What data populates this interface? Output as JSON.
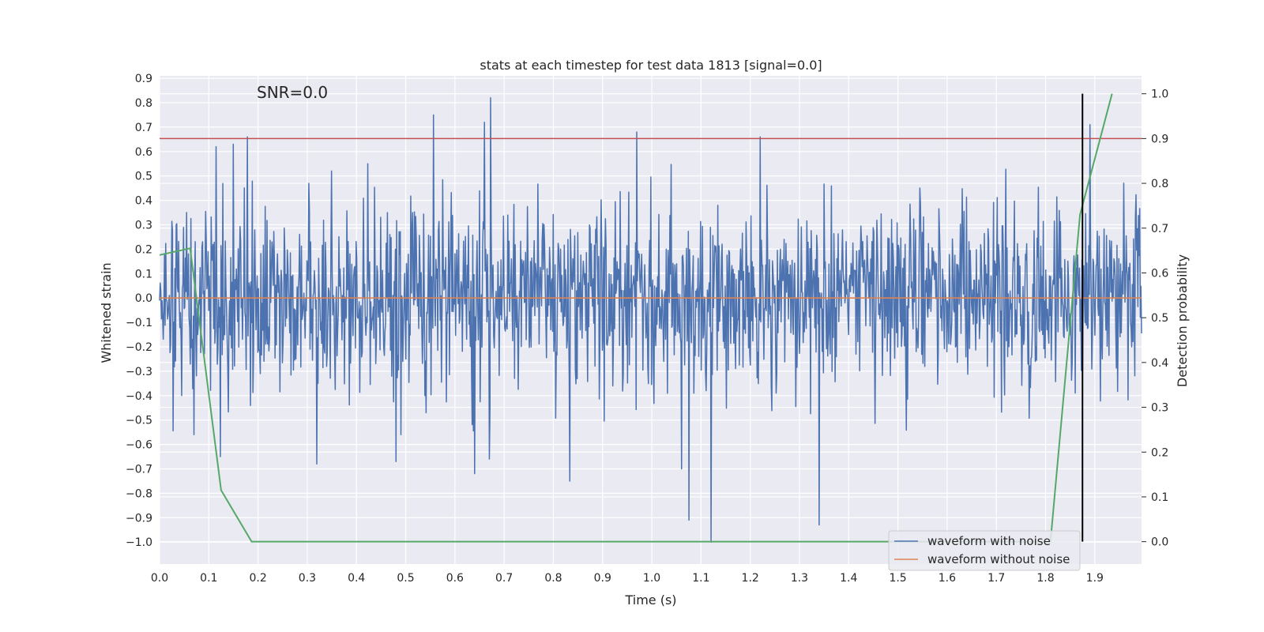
{
  "chart_data": {
    "type": "line",
    "title": "stats at each timestep for test data 1813 [signal=0.0]",
    "xlabel": "Time (s)",
    "ylabel": "Whitened strain",
    "y2label": "Detection probability",
    "annotation": "SNR=0.0",
    "xlim": [
      0.0,
      1.995
    ],
    "ylim": [
      -1.09,
      0.91
    ],
    "y2lim": [
      -0.05,
      1.04
    ],
    "xticks": [
      "0.0",
      "0.1",
      "0.2",
      "0.3",
      "0.4",
      "0.5",
      "0.6",
      "0.7",
      "0.8",
      "0.9",
      "1.0",
      "1.1",
      "1.2",
      "1.3",
      "1.4",
      "1.5",
      "1.6",
      "1.7",
      "1.8",
      "1.9"
    ],
    "yticks": [
      "0.9",
      "0.8",
      "0.7",
      "0.6",
      "0.5",
      "0.4",
      "0.3",
      "0.2",
      "0.1",
      "0.0",
      "−0.1",
      "−0.2",
      "−0.3",
      "−0.4",
      "−0.5",
      "−0.6",
      "−0.7",
      "−0.8",
      "−0.9",
      "−1.0"
    ],
    "y2ticks": [
      "1.0",
      "0.9",
      "0.8",
      "0.7",
      "0.6",
      "0.5",
      "0.4",
      "0.3",
      "0.2",
      "0.1",
      "0.0"
    ],
    "grid": true,
    "legend_position": "lower right",
    "noisy_waveform": {
      "name": "waveform with noise",
      "color": "#4c72b0",
      "seed": 1813,
      "n_points": 1600,
      "std": 0.19,
      "peaks": [
        {
          "x": 0.672,
          "y": 0.82
        },
        {
          "x": 0.557,
          "y": 0.75
        },
        {
          "x": 0.66,
          "y": 0.72
        },
        {
          "x": 0.97,
          "y": 0.68
        },
        {
          "x": 1.89,
          "y": 0.71
        },
        {
          "x": 1.22,
          "y": 0.66
        },
        {
          "x": 0.178,
          "y": 0.66
        },
        {
          "x": 0.15,
          "y": 0.63
        },
        {
          "x": 0.115,
          "y": 0.62
        },
        {
          "x": 1.12,
          "y": -1.0
        },
        {
          "x": 1.075,
          "y": -0.91
        },
        {
          "x": 1.34,
          "y": -0.93
        },
        {
          "x": 0.834,
          "y": -0.75
        },
        {
          "x": 0.64,
          "y": -0.72
        },
        {
          "x": 1.06,
          "y": -0.7
        },
        {
          "x": 0.32,
          "y": -0.68
        },
        {
          "x": 0.48,
          "y": -0.67
        },
        {
          "x": 0.67,
          "y": -0.66
        },
        {
          "x": 0.123,
          "y": -0.65
        }
      ]
    },
    "clean_waveform": {
      "name": "waveform without noise",
      "color": "#dd8452",
      "x": [
        0.0,
        1.995
      ],
      "y": [
        0.0,
        0.0
      ]
    },
    "detection_probability": {
      "color": "#55a868",
      "axis": "right",
      "x": [
        0.0,
        0.062,
        0.125,
        0.187,
        0.25,
        1.81,
        1.87,
        1.935
      ],
      "y": [
        0.64,
        0.655,
        0.115,
        0.0,
        0.0,
        0.0,
        0.73,
        1.0
      ]
    },
    "threshold": {
      "color": "#c44e52",
      "axis": "right",
      "y": 0.9
    },
    "marker_line": {
      "color": "#000000",
      "x": 1.875,
      "y2_range": [
        0.0,
        1.0
      ]
    }
  }
}
